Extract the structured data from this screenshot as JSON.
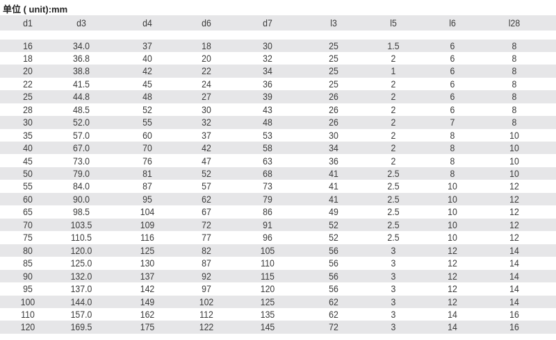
{
  "title": "单位 ( unit):mm",
  "columns": [
    "d1",
    "d3",
    "d4",
    "d6",
    "d7",
    "l3",
    "l5",
    "l6",
    "l28"
  ],
  "rows": [
    [
      "16",
      "34.0",
      "37",
      "18",
      "30",
      "25",
      "1.5",
      "6",
      "8"
    ],
    [
      "18",
      "36.8",
      "40",
      "20",
      "32",
      "25",
      "2",
      "6",
      "8"
    ],
    [
      "20",
      "38.8",
      "42",
      "22",
      "34",
      "25",
      "1",
      "6",
      "8"
    ],
    [
      "22",
      "41.5",
      "45",
      "24",
      "36",
      "25",
      "2",
      "6",
      "8"
    ],
    [
      "25",
      "44.8",
      "48",
      "27",
      "39",
      "26",
      "2",
      "6",
      "8"
    ],
    [
      "28",
      "48.5",
      "52",
      "30",
      "43",
      "26",
      "2",
      "6",
      "8"
    ],
    [
      "30",
      "52.0",
      "55",
      "32",
      "48",
      "26",
      "2",
      "7",
      "8"
    ],
    [
      "35",
      "57.0",
      "60",
      "37",
      "53",
      "30",
      "2",
      "8",
      "10"
    ],
    [
      "40",
      "67.0",
      "70",
      "42",
      "58",
      "34",
      "2",
      "8",
      "10"
    ],
    [
      "45",
      "73.0",
      "76",
      "47",
      "63",
      "36",
      "2",
      "8",
      "10"
    ],
    [
      "50",
      "79.0",
      "81",
      "52",
      "68",
      "41",
      "2.5",
      "8",
      "10"
    ],
    [
      "55",
      "84.0",
      "87",
      "57",
      "73",
      "41",
      "2.5",
      "10",
      "12"
    ],
    [
      "60",
      "90.0",
      "95",
      "62",
      "79",
      "41",
      "2.5",
      "10",
      "12"
    ],
    [
      "65",
      "98.5",
      "104",
      "67",
      "86",
      "49",
      "2.5",
      "10",
      "12"
    ],
    [
      "70",
      "103.5",
      "109",
      "72",
      "91",
      "52",
      "2.5",
      "10",
      "12"
    ],
    [
      "75",
      "110.5",
      "116",
      "77",
      "96",
      "52",
      "2.5",
      "10",
      "12"
    ],
    [
      "80",
      "120.0",
      "125",
      "82",
      "105",
      "56",
      "3",
      "12",
      "14"
    ],
    [
      "85",
      "125.0",
      "130",
      "87",
      "110",
      "56",
      "3",
      "12",
      "14"
    ],
    [
      "90",
      "132.0",
      "137",
      "92",
      "115",
      "56",
      "3",
      "12",
      "14"
    ],
    [
      "95",
      "137.0",
      "142",
      "97",
      "120",
      "56",
      "3",
      "12",
      "14"
    ],
    [
      "100",
      "144.0",
      "149",
      "102",
      "125",
      "62",
      "3",
      "12",
      "14"
    ],
    [
      "110",
      "157.0",
      "162",
      "112",
      "135",
      "62",
      "3",
      "14",
      "16"
    ],
    [
      "120",
      "169.5",
      "175",
      "122",
      "145",
      "72",
      "3",
      "14",
      "16"
    ]
  ]
}
